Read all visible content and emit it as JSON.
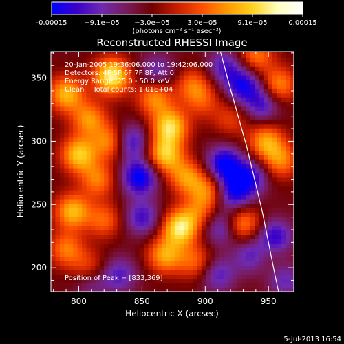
{
  "chart_data": {
    "type": "heatmap",
    "title": "Reconstructed RHESSI Image",
    "xlabel": "Heliocentric X (arcsec)",
    "ylabel": "Heliocentric Y (arcsec)",
    "xlim": [
      778,
      970
    ],
    "ylim": [
      181,
      371
    ],
    "xticks": [
      800,
      850,
      900,
      950
    ],
    "yticks": [
      200,
      250,
      300,
      350
    ],
    "colorbar": {
      "range": [
        -0.00015,
        0.00015
      ],
      "tick_labels": [
        "-0.00015",
        "−9.1e−05",
        "−3.0e−05",
        "3.0e−05",
        "9.1e−05",
        "0.00015"
      ],
      "unit_label": "(photons cm⁻² s⁻¹ asec⁻²)",
      "colors": [
        "#0000ff",
        "#3a00c8",
        "#6f2ab0",
        "#7a1a5a",
        "#700000",
        "#c81e00",
        "#ff5000",
        "#ff9a00",
        "#ffd21e",
        "#ffffc0",
        "#ffffff"
      ]
    },
    "annotations": [
      "20-Jan-2005 19:36:06.000 to 19:42:06.000",
      "Detectors: 4F 5F 6F 7F 8F, Att 0",
      "Energy Range: 25.0 - 50.0 keV",
      "Clean    Total counts: 1.01E+04"
    ],
    "peak_label": "Position of Peak = [833,369]",
    "peak": [
      833,
      369
    ],
    "limb_curve": {
      "x": [
        912,
        919,
        926,
        933,
        939,
        945,
        950,
        955,
        958
      ],
      "y": [
        371,
        345,
        320,
        295,
        270,
        245,
        220,
        195,
        181
      ]
    },
    "sources": [
      {
        "x": 826,
        "y": 352,
        "value": 0.00015
      },
      {
        "x": 790,
        "y": 338,
        "value": 0.00011
      },
      {
        "x": 808,
        "y": 318,
        "value": 9e-05
      },
      {
        "x": 800,
        "y": 290,
        "value": 0.00012
      },
      {
        "x": 826,
        "y": 300,
        "value": 0.0001
      },
      {
        "x": 815,
        "y": 270,
        "value": 8e-05
      },
      {
        "x": 795,
        "y": 245,
        "value": 0.00011
      },
      {
        "x": 820,
        "y": 238,
        "value": 7e-05
      },
      {
        "x": 790,
        "y": 215,
        "value": 8e-05
      },
      {
        "x": 808,
        "y": 200,
        "value": 6e-05
      },
      {
        "x": 860,
        "y": 335,
        "value": 9e-05
      },
      {
        "x": 872,
        "y": 312,
        "value": 0.00013
      },
      {
        "x": 868,
        "y": 290,
        "value": 0.00012
      },
      {
        "x": 885,
        "y": 272,
        "value": 9e-05
      },
      {
        "x": 880,
        "y": 232,
        "value": 0.00014
      },
      {
        "x": 868,
        "y": 210,
        "value": 0.0001
      },
      {
        "x": 892,
        "y": 205,
        "value": 7e-05
      },
      {
        "x": 890,
        "y": 345,
        "value": 7e-05
      },
      {
        "x": 903,
        "y": 262,
        "value": 8e-05
      },
      {
        "x": 895,
        "y": 245,
        "value": 6e-05
      },
      {
        "x": 898,
        "y": 332,
        "value": 5e-05
      },
      {
        "x": 940,
        "y": 368,
        "value": 8e-05
      },
      {
        "x": 958,
        "y": 345,
        "value": 9e-05
      },
      {
        "x": 948,
        "y": 300,
        "value": 0.0001
      },
      {
        "x": 960,
        "y": 285,
        "value": 8e-05
      },
      {
        "x": 930,
        "y": 235,
        "value": 9e-05
      },
      {
        "x": 943,
        "y": 210,
        "value": 6e-05
      },
      {
        "x": 920,
        "y": 318,
        "value": 5e-05
      },
      {
        "x": 848,
        "y": 272,
        "value": -0.00012
      },
      {
        "x": 840,
        "y": 300,
        "value": -0.0001
      },
      {
        "x": 850,
        "y": 240,
        "value": -8e-05
      },
      {
        "x": 915,
        "y": 282,
        "value": -0.00012
      },
      {
        "x": 922,
        "y": 260,
        "value": -0.0001
      },
      {
        "x": 935,
        "y": 272,
        "value": -9e-05
      },
      {
        "x": 912,
        "y": 232,
        "value": -7e-05
      },
      {
        "x": 938,
        "y": 210,
        "value": -0.00011
      },
      {
        "x": 955,
        "y": 225,
        "value": -9e-05
      },
      {
        "x": 930,
        "y": 345,
        "value": -0.0001
      },
      {
        "x": 945,
        "y": 330,
        "value": -8e-05
      },
      {
        "x": 915,
        "y": 360,
        "value": -7e-05
      },
      {
        "x": 862,
        "y": 356,
        "value": -6e-05
      },
      {
        "x": 832,
        "y": 195,
        "value": -7e-05
      },
      {
        "x": 810,
        "y": 188,
        "value": -5e-05
      },
      {
        "x": 910,
        "y": 195,
        "value": -7e-05
      },
      {
        "x": 963,
        "y": 190,
        "value": -6e-05
      }
    ]
  },
  "footer": {
    "timestamp": "5-Jul-2013 16:54"
  }
}
